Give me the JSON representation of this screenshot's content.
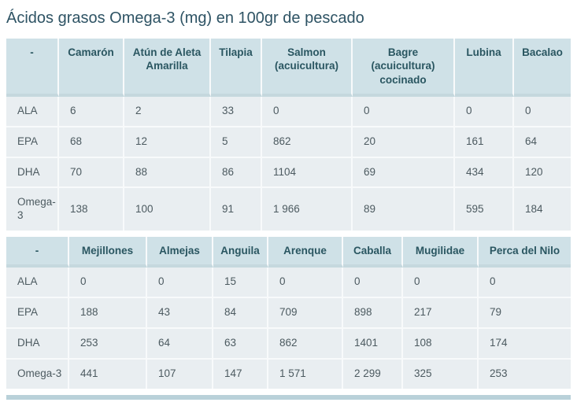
{
  "page": {
    "title": "Ácidos grasos Omega-3 (mg) en 100gr de pescado"
  },
  "colors": {
    "page-bg": "#ffffff",
    "title-text": "#2e5364",
    "header-bg": "#cfe1e7",
    "header-text": "#2a5661",
    "header-border": "#c5d8de",
    "body-bg": "#e9eef1",
    "body-text": "#4c5a60",
    "border-light": "#f8fafb",
    "strip-bg": "#b9d1d9"
  },
  "chart_data": [
    {
      "type": "table",
      "title": "Ácidos grasos Omega-3 (mg) en 100gr de pescado",
      "columns": [
        "-",
        "Camarón",
        "Atún de Aleta Amarilla",
        "Tilapia",
        "Salmon (acuicultura)",
        "Bagre (acuicultura) cocinado",
        "Lubina",
        "Bacalao"
      ],
      "rows": [
        {
          "label": "ALA",
          "values": [
            "6",
            "2",
            "33",
            "0",
            "0",
            "0",
            "0"
          ]
        },
        {
          "label": "EPA",
          "values": [
            "68",
            "12",
            "5",
            "862",
            "20",
            "161",
            "64"
          ]
        },
        {
          "label": "DHA",
          "values": [
            "70",
            "88",
            "86",
            "1104",
            "69",
            "434",
            "120"
          ]
        },
        {
          "label": "Omega-3",
          "values": [
            "138",
            "100",
            "91",
            "1 966",
            "89",
            "595",
            "184"
          ]
        }
      ]
    },
    {
      "type": "table",
      "title": "Ácidos grasos Omega-3 (mg) en 100gr de pescado (continuación)",
      "columns": [
        "-",
        "Mejillones",
        "Almejas",
        "Anguila",
        "Arenque",
        "Caballa",
        "Mugilidae",
        "Perca del Nilo"
      ],
      "rows": [
        {
          "label": "ALA",
          "values": [
            "0",
            "0",
            "15",
            "0",
            "0",
            "0",
            "0"
          ]
        },
        {
          "label": "EPA",
          "values": [
            "188",
            "43",
            "84",
            "709",
            "898",
            "217",
            "79"
          ]
        },
        {
          "label": "DHA",
          "values": [
            "253",
            "64",
            "63",
            "862",
            "1401",
            "108",
            "174"
          ]
        },
        {
          "label": "Omega-3",
          "values": [
            "441",
            "107",
            "147",
            "1 571",
            "2 299",
            "325",
            "253"
          ]
        }
      ]
    }
  ]
}
